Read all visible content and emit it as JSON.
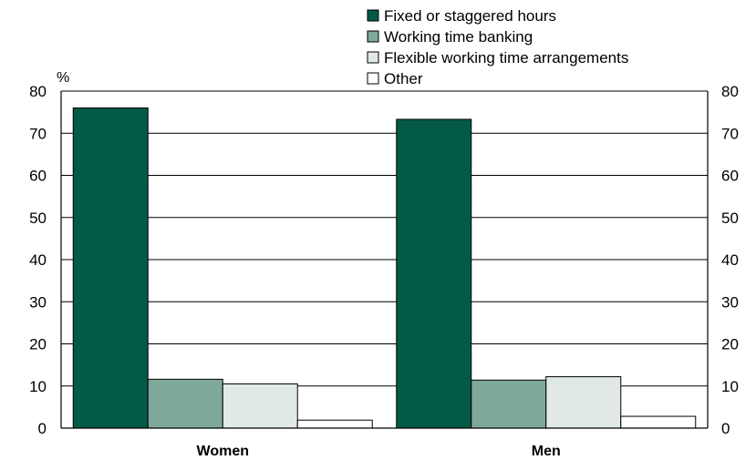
{
  "chart_data": {
    "type": "bar",
    "ylabel": "%",
    "ylim": [
      0,
      80
    ],
    "yticks": [
      0,
      10,
      20,
      30,
      40,
      50,
      60,
      70,
      80
    ],
    "grid": true,
    "legend_position": "top-right",
    "categories": [
      "Women",
      "Men"
    ],
    "series": [
      {
        "name": "Fixed or staggered hours",
        "color": "#035a47",
        "values": [
          76.0,
          73.3
        ]
      },
      {
        "name": "Working time banking",
        "color": "#7ea99a",
        "values": [
          11.6,
          11.4
        ]
      },
      {
        "name": "Flexible working time arrangements",
        "color": "#e0e9e4",
        "values": [
          10.5,
          12.2
        ]
      },
      {
        "name": "Other",
        "color": "#ffffff",
        "values": [
          1.9,
          2.8
        ]
      }
    ]
  }
}
